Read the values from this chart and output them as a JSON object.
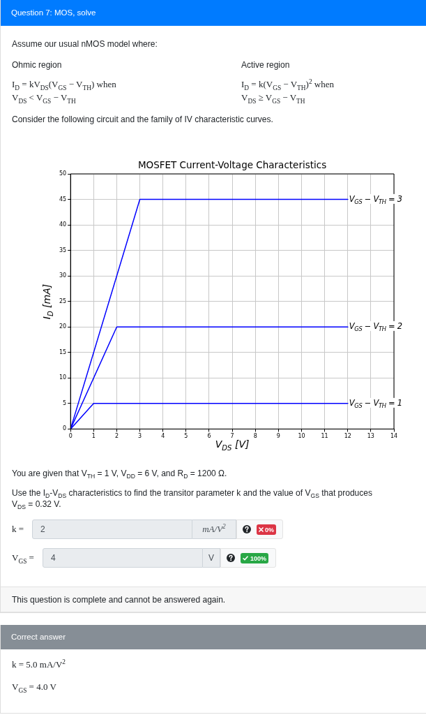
{
  "chart_data": [
    {
      "type": "other",
      "title": "Question 7: MOS, solve",
      "annotations": [
        "Assume our usual nMOS model where:",
        "Ohmic region",
        "Active region",
        "I$_{D}$ = kV$_{DS}$(V$_{GS}$ − V$_{TH}$) when",
        "V$_{DS}$ < V$_{GS}$ − V$_{TH}$",
        "I$_{D}$ = k(V$_{GS}$ − V$_{TH}$)$^{2}$ when",
        "V$_{DS}$ ≥ V$_{GS}$ − V$_{TH}$",
        "Consider the following circuit and the family of IV characteristic curves."
      ]
    },
    {
      "type": "line",
      "title": "MOSFET Current-Voltage Characteristics",
      "xlabel": "V$_{DS}$ [V]",
      "ylabel": "I$_{D}$ [mA]",
      "series": [
        {
          "name": "V$_{GS}$ − V$_{TH}$ = 1",
          "color": "#0000ff",
          "x": [
            0,
            1,
            12
          ],
          "values": [
            0,
            5,
            5
          ]
        },
        {
          "name": "V$_{GS}$ − V$_{TH}$ = 2",
          "color": "#0000ff",
          "x": [
            0,
            2,
            12
          ],
          "values": [
            0,
            20,
            20
          ]
        },
        {
          "name": "V$_{GS}$ − V$_{TH}$ = 3",
          "color": "#0000ff",
          "x": [
            0,
            3,
            12
          ],
          "values": [
            0,
            45,
            45
          ]
        }
      ],
      "xlim": [
        0,
        14
      ],
      "xticks": [
        0,
        1,
        2,
        3,
        4,
        5,
        6,
        7,
        8,
        9,
        10,
        11,
        12,
        13,
        14
      ],
      "ylim": [
        0,
        50
      ],
      "yticks": [
        0,
        5,
        10,
        15,
        20,
        25,
        30,
        35,
        40,
        45,
        50
      ],
      "grid": true
    },
    {
      "type": "other",
      "annotations": [
        "You are given that V$_{TH}$ = 1 V, V$_{DD}$ = 6 V, and R$_{D}$ = 1200 Ω.",
        "Use the I$_{D}$-V$_{DS}$ characteristics to find the transitor parameter k and the value of V$_{GS}$ that produces V$_{DS}$ = 0.32 V.",
        "k =",
        "2",
        "mA/V$^{2}$",
        "0%",
        "V$_{GS}$ =",
        "4",
        "V",
        "100%",
        "This question is complete and cannot be answered again."
      ]
    },
    {
      "type": "other",
      "title": "Correct answer",
      "annotations": [
        "k = 5.0 mA/V$^{2}$",
        "V$_{GS}$ = 4.0 V"
      ]
    }
  ]
}
